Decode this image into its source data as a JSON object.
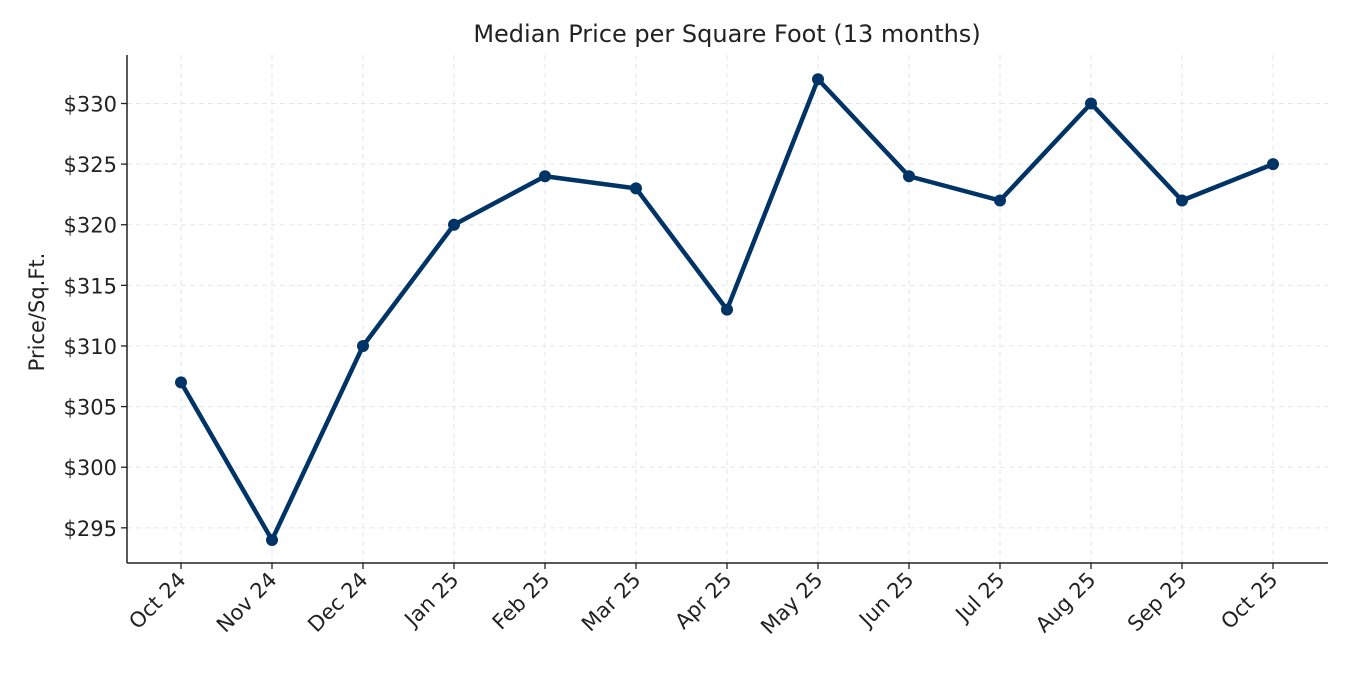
{
  "chart_data": {
    "type": "line",
    "title": "Median Price per Square Foot (13 months)",
    "xlabel": "",
    "ylabel": "Price/Sq.Ft.",
    "categories": [
      "Oct 24",
      "Nov 24",
      "Dec 24",
      "Jan 25",
      "Feb 25",
      "Mar 25",
      "Apr 25",
      "May 25",
      "Jun 25",
      "Jul 25",
      "Aug 25",
      "Sep 25",
      "Oct 25"
    ],
    "values": [
      307,
      294,
      310,
      320,
      324,
      323,
      313,
      332,
      324,
      322,
      330,
      322,
      325
    ],
    "ylim": [
      292.1,
      334
    ],
    "yticks": [
      295,
      300,
      305,
      310,
      315,
      320,
      325,
      330
    ],
    "ytick_labels": [
      "$295",
      "$300",
      "$305",
      "$310",
      "$315",
      "$320",
      "$325",
      "$330"
    ],
    "grid": true,
    "line_color": "#003366",
    "markers": true
  }
}
